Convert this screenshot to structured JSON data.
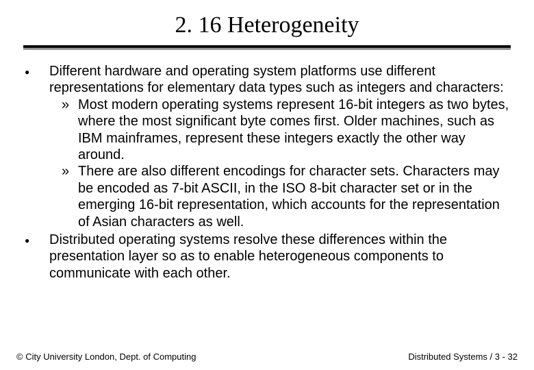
{
  "title": "2. 16 Heterogeneity",
  "body": {
    "items": [
      {
        "text": "Different hardware and operating system platforms use different representations for elementary data types such as integers and characters:",
        "sub": [
          "Most modern operating systems represent 16-bit integers as two bytes, where the most significant byte comes first. Older machines, such as IBM mainframes, represent these integers exactly the other way around.",
          "There are also different encodings for character sets. Characters may be encoded as 7-bit ASCII, in the ISO 8-bit character set or in the emerging 16-bit representation, which accounts for the representation of Asian characters as well."
        ]
      },
      {
        "text": "Distributed operating systems resolve these differences within the presentation layer so as to enable heterogeneous components to communicate with each other.",
        "sub": []
      }
    ]
  },
  "footer": {
    "left": "© City University London, Dept. of Computing",
    "right": "Distributed Systems / 3 - 32"
  },
  "style": {
    "title_fontsize": 34,
    "body_fontsize": 20,
    "footer_fontsize": 13,
    "text_color": "#000000",
    "background_color": "#ffffff",
    "bullet_l1": "●",
    "bullet_l2": "»"
  }
}
